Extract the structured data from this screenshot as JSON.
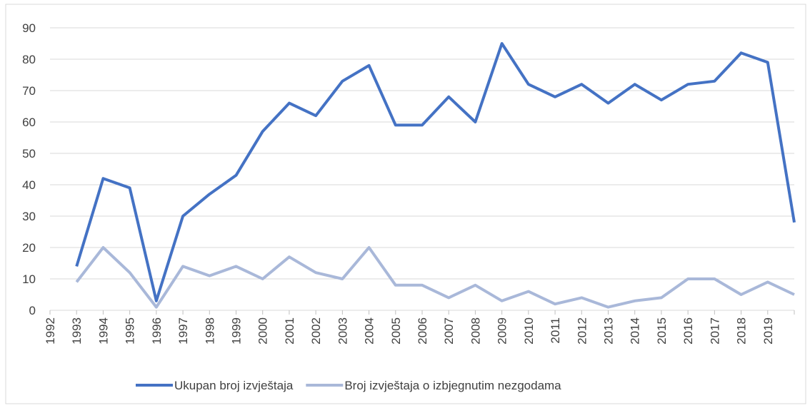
{
  "chart_data": {
    "type": "line",
    "categories": [
      "1992",
      "1993",
      "1994",
      "1995",
      "1996",
      "1997",
      "1998",
      "1999",
      "2000",
      "2001",
      "2002",
      "2003",
      "2004",
      "2005",
      "2006",
      "2007",
      "2008",
      "2009",
      "2010",
      "2011",
      "2012",
      "2013",
      "2014",
      "2015",
      "2016",
      "2017",
      "2018",
      "2019",
      null
    ],
    "series": [
      {
        "name": "Ukupan broj izvještaja",
        "color": "#4472c4",
        "values": [
          null,
          14,
          42,
          39,
          3,
          30,
          37,
          43,
          57,
          66,
          62,
          73,
          78,
          59,
          59,
          68,
          60,
          85,
          72,
          68,
          72,
          66,
          72,
          67,
          72,
          73,
          82,
          79,
          28
        ]
      },
      {
        "name": "Broj izvještaja o izbjegnutim nezgodama",
        "color": "#a9b8d9",
        "values": [
          null,
          9,
          20,
          12,
          1,
          14,
          11,
          14,
          10,
          17,
          12,
          10,
          20,
          8,
          8,
          4,
          8,
          3,
          6,
          2,
          4,
          1,
          3,
          4,
          10,
          10,
          5,
          9,
          5
        ]
      }
    ],
    "ylim": [
      0,
      90
    ],
    "yticks": [
      0,
      10,
      20,
      30,
      40,
      50,
      60,
      70,
      80,
      90
    ],
    "grid": true,
    "legend": "bottom"
  }
}
